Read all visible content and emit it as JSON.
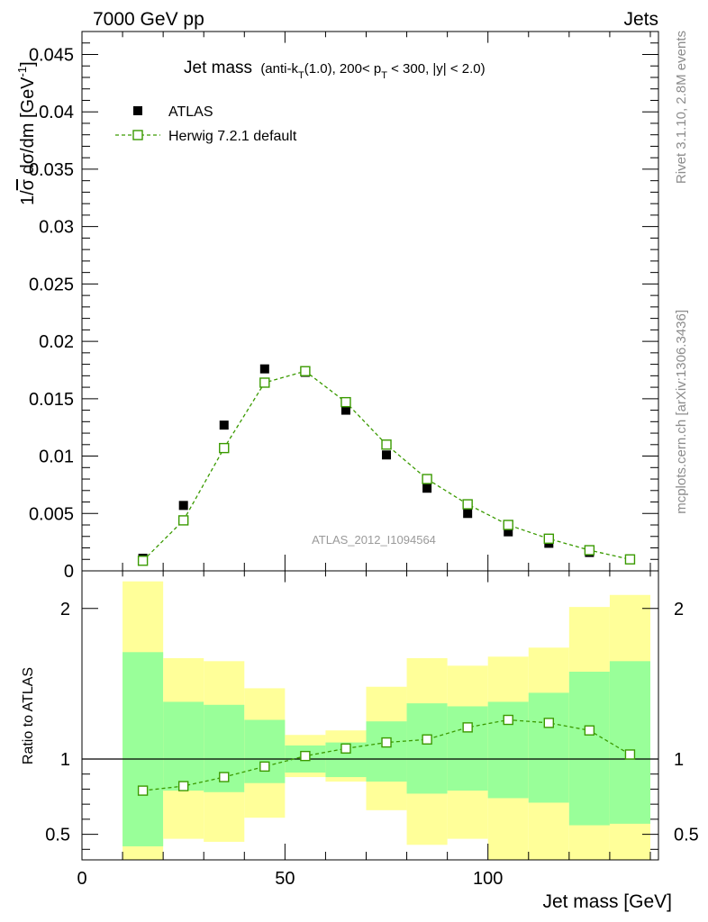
{
  "header": {
    "left": "7000 GeV pp",
    "right": "Jets"
  },
  "side_labels": {
    "rivet": "Rivet 3.1.10,  2.8M events",
    "mcplots": "mcplots.cern.ch [arXiv:1306.3436]"
  },
  "chart_data": {
    "type": "scatter",
    "title_main": "Jet mass",
    "title_detail": {
      "part1": "(anti-k",
      "sub1": "T",
      "part2": "(1.0), 200< p",
      "sub2": "T",
      "part3": " < 300, |y| < 2.0)"
    },
    "ylabel_parts": [
      "1/",
      "σ",
      " dσ/dm [GeV",
      "-1",
      "]"
    ],
    "xlabel": "Jet mass [GeV]",
    "ratio_ylabel": "Ratio to ATLAS",
    "watermark": "ATLAS_2012_I1094564",
    "xlim": [
      0,
      142
    ],
    "ylim": [
      0,
      0.047
    ],
    "ratio_ylim": [
      0.33,
      2.25
    ],
    "x_ticks": [
      {
        "v": 0,
        "label": "0"
      },
      {
        "v": 50,
        "label": "50"
      },
      {
        "v": 100,
        "label": "100"
      }
    ],
    "y_ticks": [
      {
        "v": 0,
        "label": "0"
      },
      {
        "v": 0.005,
        "label": "0.005"
      },
      {
        "v": 0.01,
        "label": "0.01"
      },
      {
        "v": 0.015,
        "label": "0.015"
      },
      {
        "v": 0.02,
        "label": "0.02"
      },
      {
        "v": 0.025,
        "label": "0.025"
      },
      {
        "v": 0.03,
        "label": "0.03"
      },
      {
        "v": 0.035,
        "label": "0.035"
      },
      {
        "v": 0.04,
        "label": "0.04"
      },
      {
        "v": 0.045,
        "label": "0.045"
      }
    ],
    "ratio_ticks": [
      {
        "v": 0.5,
        "label": "0.5"
      },
      {
        "v": 1,
        "label": "1"
      },
      {
        "v": 2,
        "label": "2"
      }
    ],
    "bins": [
      [
        10,
        20
      ],
      [
        20,
        30
      ],
      [
        30,
        40
      ],
      [
        40,
        50
      ],
      [
        50,
        60
      ],
      [
        60,
        70
      ],
      [
        70,
        80
      ],
      [
        80,
        90
      ],
      [
        90,
        100
      ],
      [
        100,
        110
      ],
      [
        110,
        120
      ],
      [
        120,
        130
      ],
      [
        130,
        140
      ]
    ],
    "series": [
      {
        "name": "ATLAS",
        "marker": "filled-square",
        "color": "#000000",
        "x": [
          15,
          25,
          35,
          45,
          55,
          65,
          75,
          85,
          95,
          105,
          115,
          125,
          135
        ],
        "y": [
          0.0011,
          0.0057,
          0.0127,
          0.0176,
          0.0173,
          0.014,
          0.0101,
          0.0072,
          0.005,
          0.0034,
          0.0024,
          0.0016,
          0.001
        ]
      },
      {
        "name": "Herwig 7.2.1 default",
        "marker": "open-square",
        "line": "dashed",
        "color": "#3a9a00",
        "x": [
          15,
          25,
          35,
          45,
          55,
          65,
          75,
          85,
          95,
          105,
          115,
          125,
          135
        ],
        "y": [
          0.00088,
          0.0044,
          0.0107,
          0.0164,
          0.0174,
          0.0147,
          0.011,
          0.008,
          0.0058,
          0.004,
          0.0028,
          0.0018,
          0.001
        ]
      }
    ],
    "ratio": [
      0.79,
      0.82,
      0.88,
      0.95,
      1.02,
      1.07,
      1.11,
      1.13,
      1.21,
      1.26,
      1.24,
      1.19,
      1.03
    ],
    "band_inner": [
      [
        0.42,
        1.71
      ],
      [
        0.79,
        1.38
      ],
      [
        0.78,
        1.36
      ],
      [
        0.84,
        1.26
      ],
      [
        0.91,
        1.09
      ],
      [
        0.88,
        1.11
      ],
      [
        0.85,
        1.25
      ],
      [
        0.77,
        1.37
      ],
      [
        0.79,
        1.35
      ],
      [
        0.74,
        1.38
      ],
      [
        0.71,
        1.44
      ],
      [
        0.56,
        1.58
      ],
      [
        0.57,
        1.65
      ]
    ],
    "band_outer": [
      [
        0.33,
        2.18
      ],
      [
        0.47,
        1.67
      ],
      [
        0.45,
        1.65
      ],
      [
        0.61,
        1.47
      ],
      [
        0.88,
        1.16
      ],
      [
        0.85,
        1.19
      ],
      [
        0.66,
        1.48
      ],
      [
        0.43,
        1.67
      ],
      [
        0.47,
        1.62
      ],
      [
        0.33,
        1.68
      ],
      [
        0.33,
        1.74
      ],
      [
        0.33,
        2.01
      ],
      [
        0.33,
        2.09
      ]
    ],
    "colors": {
      "band_inner": "#99ff99",
      "band_outer": "#ffff99",
      "mc": "#3a9a00",
      "data": "#000000"
    }
  }
}
